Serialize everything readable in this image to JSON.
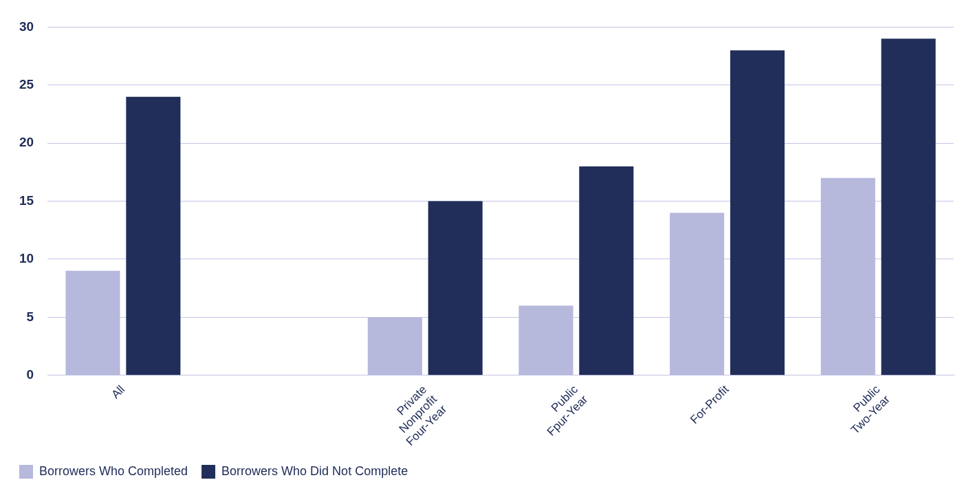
{
  "chart_data": {
    "type": "bar",
    "categories": [
      "All",
      null,
      "Private Nonprofit Four-Year",
      "Public Fpur-Year",
      "For-Profit",
      "Public Two-Year"
    ],
    "series": [
      {
        "name": "Borrowers Who Completed",
        "color": "#b6b8dc",
        "values": [
          9,
          null,
          5,
          6,
          14,
          17
        ]
      },
      {
        "name": "Borrowers Who Did Not Complete",
        "color": "#212e59",
        "values": [
          24,
          null,
          15,
          18,
          28,
          29
        ]
      }
    ],
    "ylim": [
      0,
      30
    ],
    "yticks": [
      0,
      5,
      10,
      15,
      20,
      25,
      30
    ],
    "grid": "y",
    "legend": "bottom left"
  }
}
